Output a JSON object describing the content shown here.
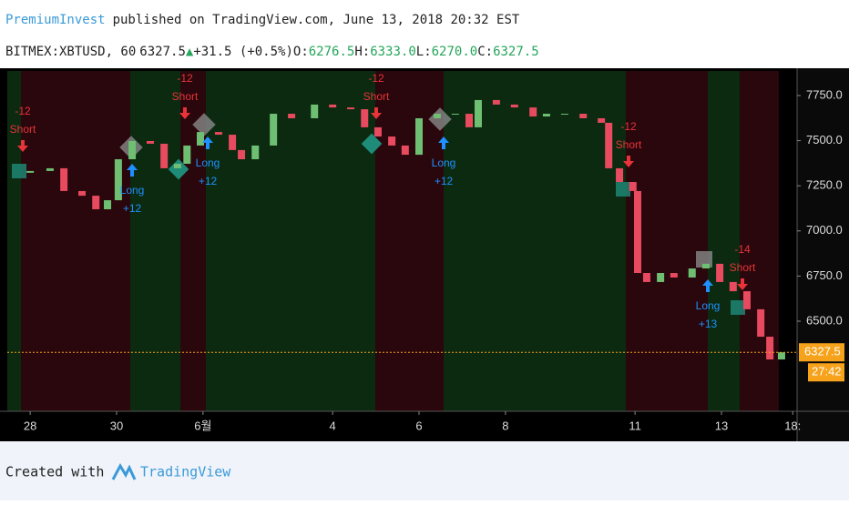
{
  "header": {
    "author": "PremiumInvest",
    "published": "published on TradingView.com, June 13, 2018 20:32 EST",
    "symbol": "BITMEX:XBTUSD, 60",
    "price": "6327.5",
    "change_arrow": "▲",
    "change": "+31.5 (+0.5%)",
    "open_label": "O:",
    "open": "6276.5",
    "high_label": "H:",
    "high": "6333.0",
    "low_label": "L:",
    "low": "6270.0",
    "close_label": "C:",
    "close": "6327.5"
  },
  "chart_data": {
    "type": "candlestick",
    "x": [
      -0.48,
      0,
      0.46,
      0.78,
      1.2,
      1.52,
      1.79,
      2.04,
      2.36,
      2.78,
      3.1,
      3.41,
      3.63,
      3.94,
      4.36,
      4.68,
      4.89,
      5.21,
      5.63,
      6.05,
      6.58,
      7.0,
      7.42,
      7.74,
      8.05,
      8.37,
      8.68,
      9.0,
      9.42,
      9.84,
      10.16,
      10.37,
      10.79,
      11.21,
      11.64,
      11.95,
      12.37,
      12.8,
      13.22,
      13.39,
      13.64,
      13.95,
      14.06,
      14.27,
      14.59,
      14.9,
      15.32,
      15.64,
      15.96,
      16.27,
      16.59,
      16.91,
      17.12,
      17.39
    ],
    "values": [
      7322,
      7332,
      7347,
      7221,
      7195,
      7120,
      7170,
      7397,
      7498,
      7483,
      7347,
      7372,
      7473,
      7548,
      7533,
      7448,
      7397,
      7473,
      7649,
      7624,
      7700,
      7684,
      7674,
      7574,
      7523,
      7473,
      7422,
      7624,
      7649,
      7649,
      7574,
      7725,
      7700,
      7684,
      7634,
      7649,
      7649,
      7624,
      7599,
      7347,
      7271,
      7221,
      6767,
      6717,
      6767,
      6742,
      6792,
      6818,
      6717,
      6666,
      6566,
      6414,
      6288,
      6327.5
    ],
    "colors": {
      "up": "#6fbf73",
      "down": "#e84a5f"
    },
    "xlim": [
      -0.53,
      17.75
    ],
    "ylim": [
      6001,
      7886
    ],
    "yticks": [
      {
        "value": 7750,
        "label": "7750.0"
      },
      {
        "value": 7500,
        "label": "7500.0"
      },
      {
        "value": 7250,
        "label": "7250.0"
      },
      {
        "value": 7000,
        "label": "7000.0"
      },
      {
        "value": 6750,
        "label": "6750.0"
      },
      {
        "value": 6500,
        "label": "6500.0"
      }
    ],
    "xticks": [
      {
        "value": 0,
        "label": "28"
      },
      {
        "value": 2,
        "label": "30"
      },
      {
        "value": 4,
        "label": "6월"
      },
      {
        "value": 7,
        "label": "4"
      },
      {
        "value": 9,
        "label": "6"
      },
      {
        "value": 11,
        "label": "8"
      },
      {
        "value": 14,
        "label": "11"
      },
      {
        "value": 16,
        "label": "13"
      },
      {
        "value": 17.65,
        "label": "18:"
      }
    ],
    "last_price": {
      "value": 6327.5,
      "label": "6327.5"
    },
    "countdown": "27:42",
    "annotations": [
      {
        "kind": "short",
        "amount": "-12",
        "text": "Short"
      },
      {
        "kind": "short",
        "amount": "-12",
        "text": "Short"
      },
      {
        "kind": "short",
        "amount": "-12",
        "text": "Short"
      },
      {
        "kind": "short",
        "amount": "-12",
        "text": "Short"
      },
      {
        "kind": "short",
        "amount": "-14",
        "text": "Short"
      },
      {
        "kind": "long",
        "amount": "+12",
        "text": "Long"
      },
      {
        "kind": "long",
        "amount": "+12",
        "text": "Long"
      },
      {
        "kind": "long",
        "amount": "+12",
        "text": "Long"
      },
      {
        "kind": "long",
        "amount": "+13",
        "text": "Long"
      }
    ]
  },
  "footer": {
    "created": "Created with",
    "brand": "TradingView"
  }
}
